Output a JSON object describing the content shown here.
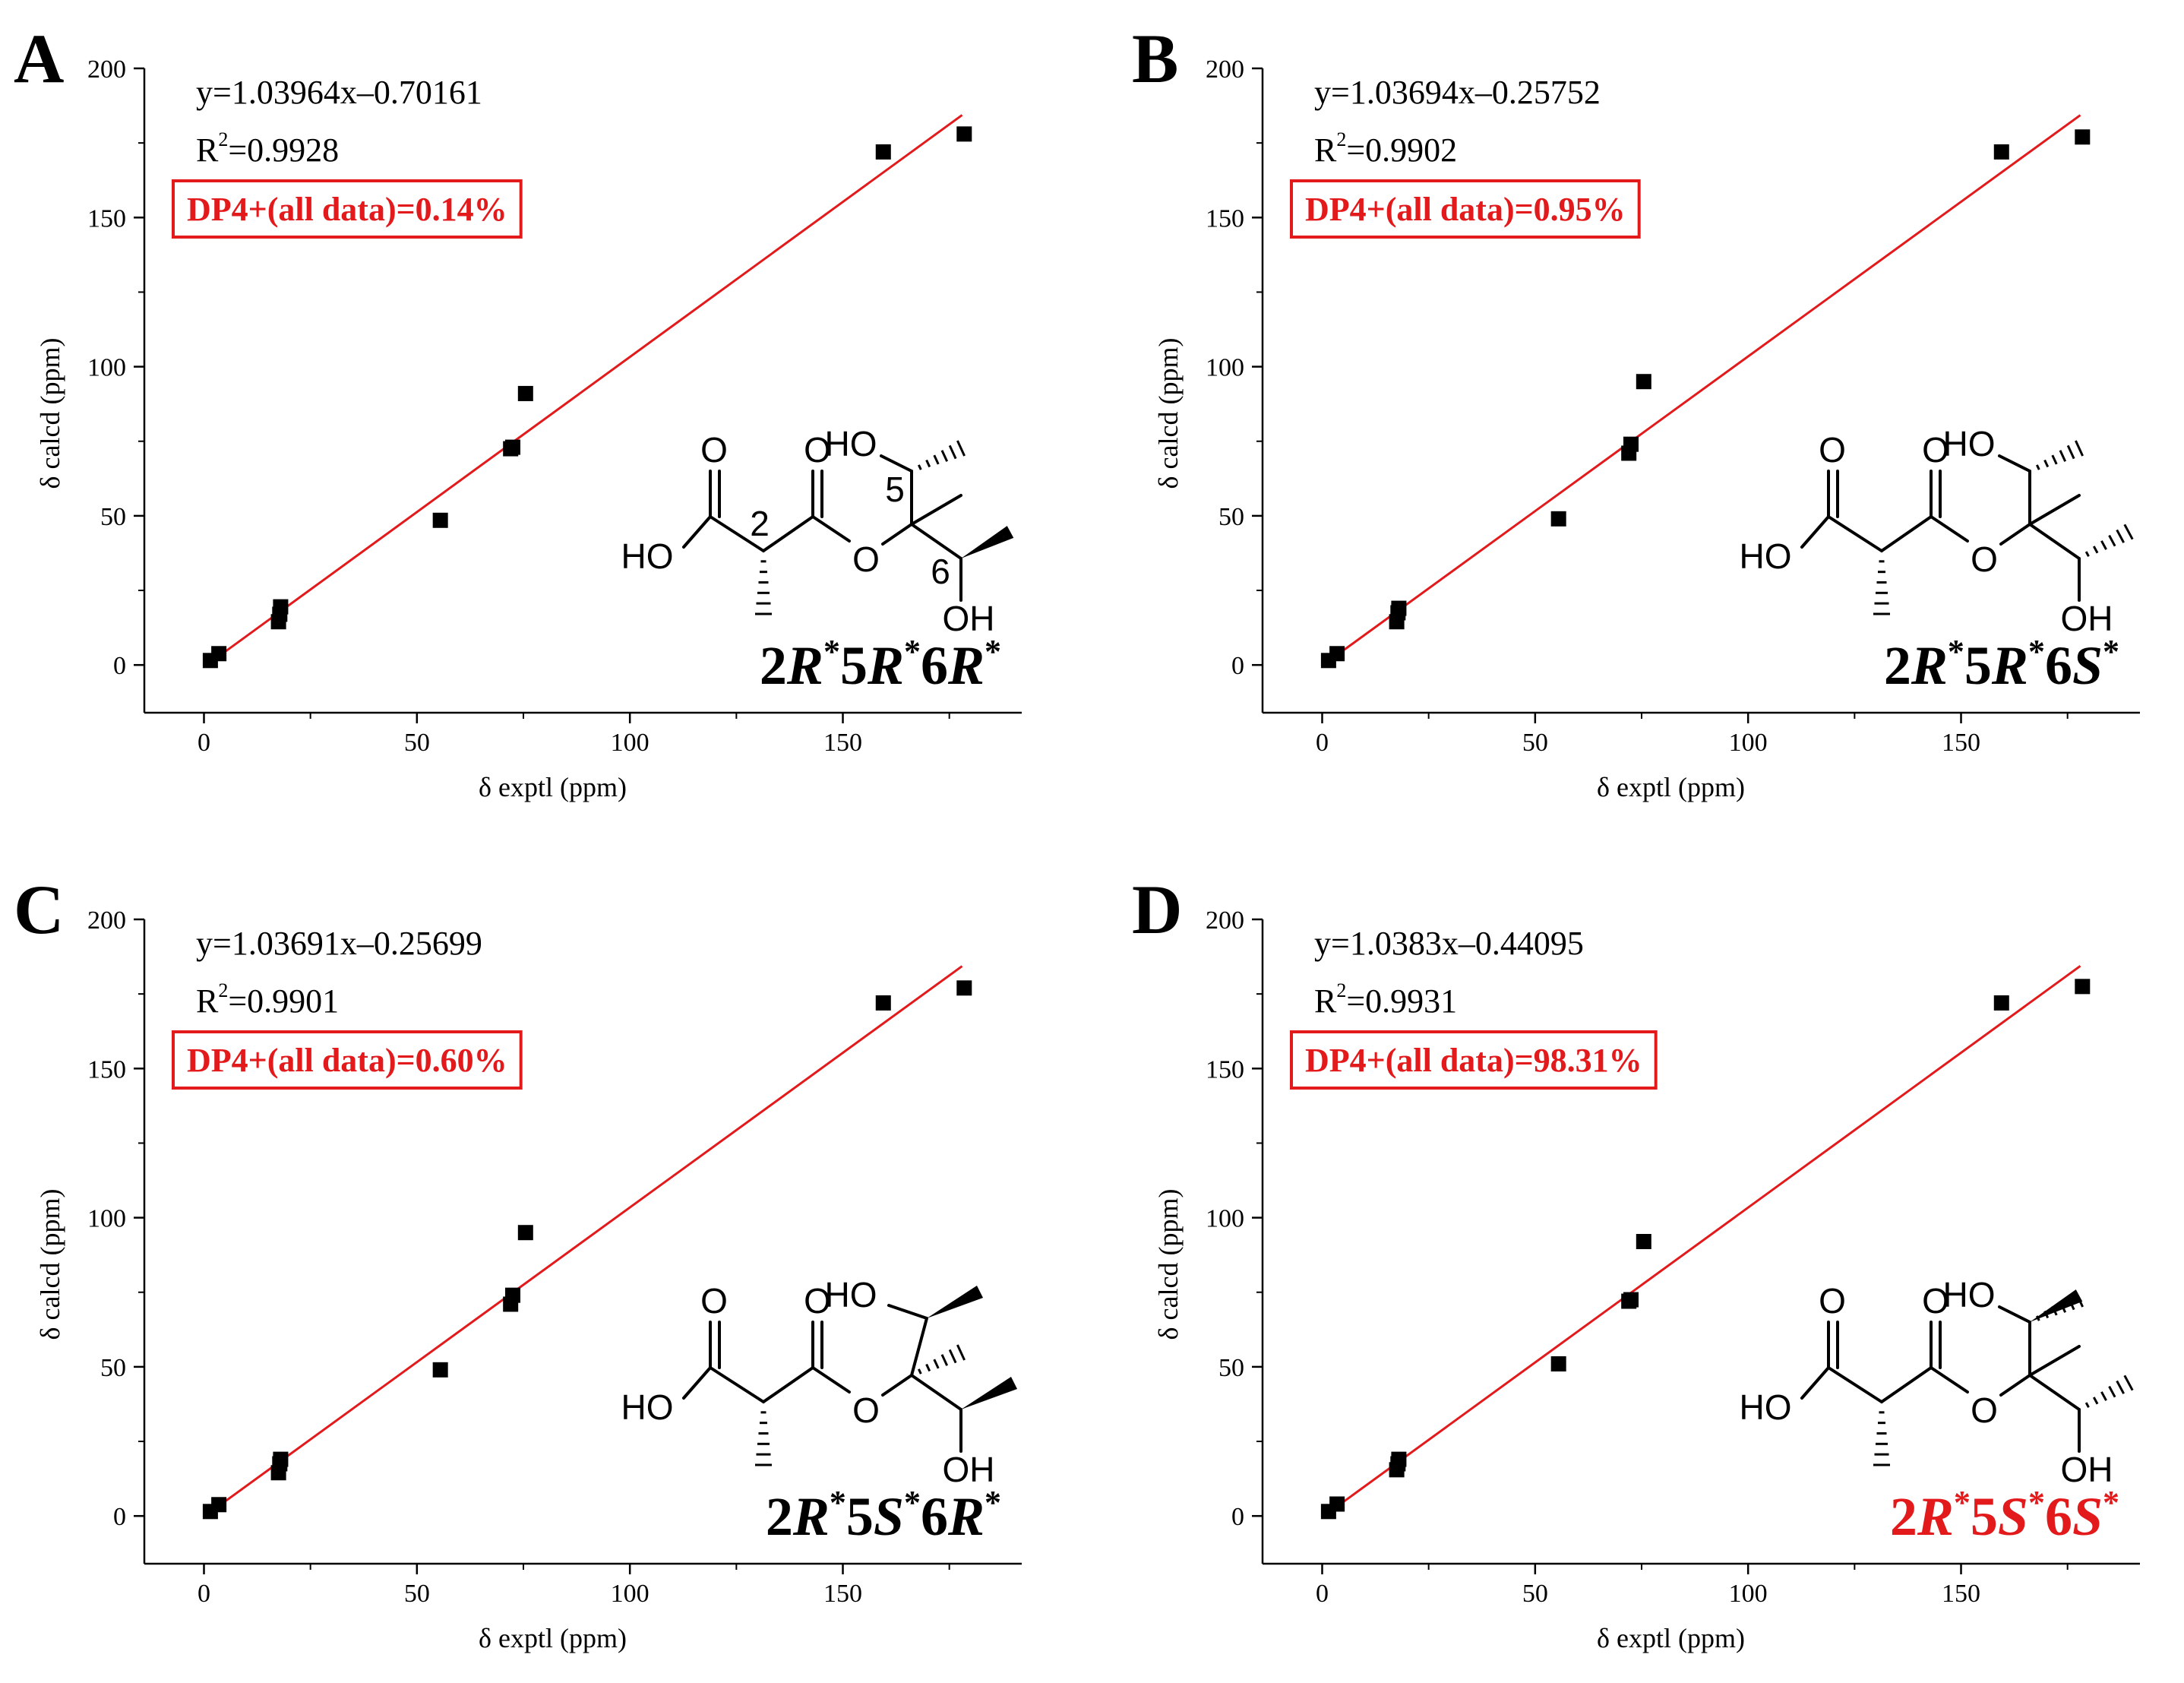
{
  "figure": {
    "background": "#ffffff",
    "accent": "#e31a1c",
    "ink": "#000000"
  },
  "chart_data": [
    {
      "type": "scatter",
      "panel_letter": "A",
      "xlabel": "δ exptl (ppm)",
      "ylabel": "δ calcd (ppm)",
      "xlim": [
        -14,
        192
      ],
      "ylim": [
        -16,
        200
      ],
      "x_ticks": [
        0,
        50,
        100,
        150
      ],
      "x_tick_labels": [
        "0",
        "50",
        "100",
        "150"
      ],
      "y_ticks": [
        0,
        50,
        100,
        150,
        200
      ],
      "y_tick_labels": [
        "0",
        "50",
        "100",
        "150",
        "200"
      ],
      "grid": false,
      "points": [
        [
          1.5,
          1.5
        ],
        [
          3.5,
          3.8
        ],
        [
          17.5,
          14.5
        ],
        [
          17.8,
          17.0
        ],
        [
          18.0,
          19.5
        ],
        [
          55.5,
          48.5
        ],
        [
          72.0,
          72.5
        ],
        [
          72.5,
          73.0
        ],
        [
          75.5,
          91.0
        ],
        [
          159.5,
          172.0
        ],
        [
          178.5,
          178.0
        ]
      ],
      "fit": {
        "slope": 1.03964,
        "intercept": -0.70161,
        "x_range": [
          0,
          178
        ]
      },
      "equation": "y=1.03964x–0.70161",
      "r2_prefix": "R",
      "r2_sup": "2",
      "r2_value": "=0.9928",
      "dp4_label": "DP4+(all data)=0.14%",
      "config_parts": [
        {
          "t": "2",
          "i": false,
          "s": false
        },
        {
          "t": "R",
          "i": true,
          "s": false
        },
        {
          "t": "*",
          "i": false,
          "s": true
        },
        {
          "t": "5",
          "i": false,
          "s": false
        },
        {
          "t": "R",
          "i": true,
          "s": false
        },
        {
          "t": "*",
          "i": false,
          "s": true
        },
        {
          "t": "6",
          "i": false,
          "s": false
        },
        {
          "t": "R",
          "i": true,
          "s": false
        },
        {
          "t": "*",
          "i": false,
          "s": true
        }
      ],
      "config_color": "#000000",
      "structure": {
        "ho": "HO",
        "oh": "OH",
        "carbonyl_o": "O",
        "ester_o": "O",
        "c_pos_labels": [
          "2",
          "5",
          "6"
        ],
        "variant": "A"
      }
    },
    {
      "type": "scatter",
      "panel_letter": "B",
      "xlabel": "δ exptl (ppm)",
      "ylabel": "δ calcd (ppm)",
      "xlim": [
        -14,
        192
      ],
      "ylim": [
        -16,
        200
      ],
      "x_ticks": [
        0,
        50,
        100,
        150
      ],
      "x_tick_labels": [
        "0",
        "50",
        "100",
        "150"
      ],
      "y_ticks": [
        0,
        50,
        100,
        150,
        200
      ],
      "y_tick_labels": [
        "0",
        "50",
        "100",
        "150",
        "200"
      ],
      "grid": false,
      "points": [
        [
          1.5,
          1.5
        ],
        [
          3.5,
          3.8
        ],
        [
          17.5,
          14.5
        ],
        [
          17.8,
          17.5
        ],
        [
          18.0,
          19.0
        ],
        [
          55.5,
          49.0
        ],
        [
          72.0,
          71.0
        ],
        [
          72.5,
          74.0
        ],
        [
          75.5,
          95.0
        ],
        [
          159.5,
          172.0
        ],
        [
          178.5,
          177.0
        ]
      ],
      "fit": {
        "slope": 1.03694,
        "intercept": -0.25752,
        "x_range": [
          0,
          178
        ]
      },
      "equation": "y=1.03694x–0.25752",
      "r2_prefix": "R",
      "r2_sup": "2",
      "r2_value": "=0.9902",
      "dp4_label": "DP4+(all data)=0.95%",
      "config_parts": [
        {
          "t": "2",
          "i": false,
          "s": false
        },
        {
          "t": "R",
          "i": true,
          "s": false
        },
        {
          "t": "*",
          "i": false,
          "s": true
        },
        {
          "t": "5",
          "i": false,
          "s": false
        },
        {
          "t": "R",
          "i": true,
          "s": false
        },
        {
          "t": "*",
          "i": false,
          "s": true
        },
        {
          "t": "6",
          "i": false,
          "s": false
        },
        {
          "t": "S",
          "i": true,
          "s": false
        },
        {
          "t": "*",
          "i": false,
          "s": true
        }
      ],
      "config_color": "#000000",
      "structure": {
        "ho": "HO",
        "oh": "OH",
        "carbonyl_o": "O",
        "ester_o": "O",
        "c_pos_labels": [],
        "variant": "B"
      }
    },
    {
      "type": "scatter",
      "panel_letter": "C",
      "xlabel": "δ exptl (ppm)",
      "ylabel": "δ calcd (ppm)",
      "xlim": [
        -14,
        192
      ],
      "ylim": [
        -16,
        200
      ],
      "x_ticks": [
        0,
        50,
        100,
        150
      ],
      "x_tick_labels": [
        "0",
        "50",
        "100",
        "150"
      ],
      "y_ticks": [
        0,
        50,
        100,
        150,
        200
      ],
      "y_tick_labels": [
        "0",
        "50",
        "100",
        "150",
        "200"
      ],
      "grid": false,
      "points": [
        [
          1.5,
          1.5
        ],
        [
          3.5,
          3.8
        ],
        [
          17.5,
          14.5
        ],
        [
          17.8,
          17.5
        ],
        [
          18.0,
          19.0
        ],
        [
          55.5,
          49.0
        ],
        [
          72.0,
          71.0
        ],
        [
          72.5,
          74.0
        ],
        [
          75.5,
          95.0
        ],
        [
          159.5,
          172.0
        ],
        [
          178.5,
          177.0
        ]
      ],
      "fit": {
        "slope": 1.03691,
        "intercept": -0.25699,
        "x_range": [
          0,
          178
        ]
      },
      "equation": "y=1.03691x–0.25699",
      "r2_prefix": "R",
      "r2_sup": "2",
      "r2_value": "=0.9901",
      "dp4_label": "DP4+(all data)=0.60%",
      "config_parts": [
        {
          "t": "2",
          "i": false,
          "s": false
        },
        {
          "t": "R",
          "i": true,
          "s": false
        },
        {
          "t": "*",
          "i": false,
          "s": true
        },
        {
          "t": "5",
          "i": false,
          "s": false
        },
        {
          "t": "S",
          "i": true,
          "s": false
        },
        {
          "t": "*",
          "i": false,
          "s": true
        },
        {
          "t": "6",
          "i": false,
          "s": false
        },
        {
          "t": "R",
          "i": true,
          "s": false
        },
        {
          "t": "*",
          "i": false,
          "s": true
        }
      ],
      "config_color": "#000000",
      "structure": {
        "ho": "HO",
        "oh": "OH",
        "carbonyl_o": "O",
        "ester_o": "O",
        "c_pos_labels": [],
        "variant": "C"
      }
    },
    {
      "type": "scatter",
      "panel_letter": "D",
      "xlabel": "δ exptl (ppm)",
      "ylabel": "δ calcd (ppm)",
      "xlim": [
        -14,
        192
      ],
      "ylim": [
        -16,
        200
      ],
      "x_ticks": [
        0,
        50,
        100,
        150
      ],
      "x_tick_labels": [
        "0",
        "50",
        "100",
        "150"
      ],
      "y_ticks": [
        0,
        50,
        100,
        150,
        200
      ],
      "y_tick_labels": [
        "0",
        "50",
        "100",
        "150",
        "200"
      ],
      "grid": false,
      "points": [
        [
          1.5,
          1.5
        ],
        [
          3.5,
          4.0
        ],
        [
          17.5,
          15.5
        ],
        [
          17.8,
          17.5
        ],
        [
          18.0,
          19.0
        ],
        [
          55.5,
          51.0
        ],
        [
          72.0,
          72.0
        ],
        [
          72.5,
          72.5
        ],
        [
          75.5,
          92.0
        ],
        [
          159.5,
          172.0
        ],
        [
          178.5,
          177.5
        ]
      ],
      "fit": {
        "slope": 1.0383,
        "intercept": -0.44095,
        "x_range": [
          0,
          178
        ]
      },
      "equation": "y=1.0383x–0.44095",
      "r2_prefix": "R",
      "r2_sup": "2",
      "r2_value": "=0.9931",
      "dp4_label": "DP4+(all data)=98.31%",
      "config_parts": [
        {
          "t": "2",
          "i": false,
          "s": false
        },
        {
          "t": "R",
          "i": true,
          "s": false
        },
        {
          "t": "*",
          "i": false,
          "s": true
        },
        {
          "t": "5",
          "i": false,
          "s": false
        },
        {
          "t": "S",
          "i": true,
          "s": false
        },
        {
          "t": "*",
          "i": false,
          "s": true
        },
        {
          "t": "6",
          "i": false,
          "s": false
        },
        {
          "t": "S",
          "i": true,
          "s": false
        },
        {
          "t": "*",
          "i": false,
          "s": true
        }
      ],
      "config_color": "#e31a1c",
      "structure": {
        "ho": "HO",
        "oh": "OH",
        "carbonyl_o": "O",
        "ester_o": "O",
        "c_pos_labels": [],
        "variant": "D"
      }
    }
  ]
}
